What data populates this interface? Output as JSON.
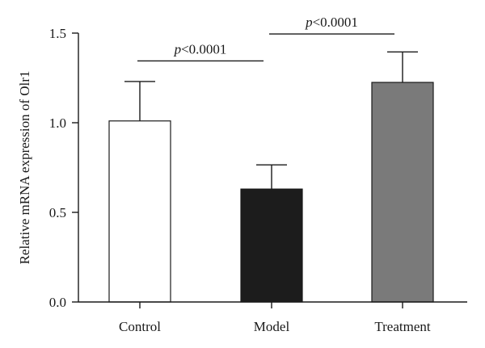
{
  "chart_data": {
    "type": "bar",
    "categories": [
      "Control",
      "Model",
      "Treatment"
    ],
    "values": [
      1.01,
      0.63,
      1.225
    ],
    "errors": [
      0.22,
      0.135,
      0.17
    ],
    "bar_colors": [
      "#ffffff",
      "#1c1c1c",
      "#7a7a7a"
    ],
    "ylabel": "Relative mRNA expression of Olr1",
    "xlabel": "",
    "ylim": [
      0,
      1.5
    ],
    "yticks": [
      {
        "value": 0,
        "label": "0.0"
      },
      {
        "value": 0.5,
        "label": "0.5"
      },
      {
        "value": 1,
        "label": "1.0"
      },
      {
        "value": 1.5,
        "label": "1.5"
      }
    ],
    "significance": [
      {
        "from": 0,
        "to": 1,
        "y": 1.345,
        "label_p": "p",
        "label_rest": "<0.0001"
      },
      {
        "from": 1,
        "to": 2,
        "y": 1.495,
        "label_p": "p",
        "label_rest": "<0.0001"
      }
    ],
    "grid": false,
    "legend": "none"
  }
}
